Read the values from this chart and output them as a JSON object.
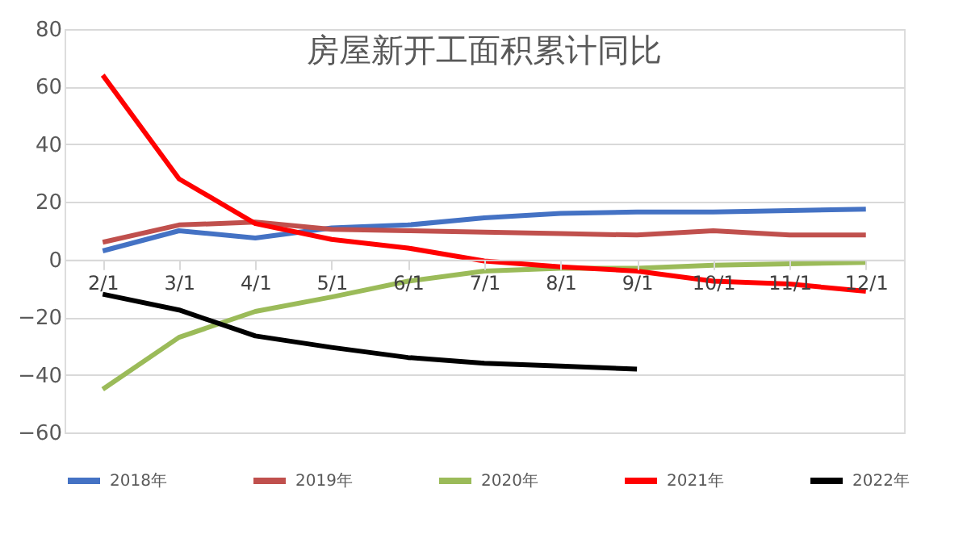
{
  "chart_data": {
    "type": "line",
    "title": "房屋新开工面积累计同比",
    "categories": [
      "2/1",
      "3/1",
      "4/1",
      "5/1",
      "6/1",
      "7/1",
      "8/1",
      "9/1",
      "10/1",
      "11/1",
      "12/1"
    ],
    "series": [
      {
        "name": "2018年",
        "color": "#4472c4",
        "values": [
          3,
          10,
          7.5,
          11,
          12,
          14.5,
          16,
          16.5,
          16.5,
          17,
          17.5
        ]
      },
      {
        "name": "2019年",
        "color": "#c0504d",
        "values": [
          6,
          12,
          13,
          10.5,
          10,
          9.5,
          9,
          8.5,
          10,
          8.5,
          8.5
        ]
      },
      {
        "name": "2020年",
        "color": "#9bbb59",
        "values": [
          -45,
          -27,
          -18,
          -13,
          -7.5,
          -4,
          -3,
          -3,
          -2,
          -1.5,
          -1
        ]
      },
      {
        "name": "2021年",
        "color": "#ff0000",
        "values": [
          64,
          28,
          12.5,
          7,
          4,
          -0.5,
          -2.5,
          -4,
          -7.5,
          -8.5,
          -11
        ]
      },
      {
        "name": "2022年",
        "color": "#000000",
        "values": [
          -12,
          -17.5,
          -26.5,
          -30.5,
          -34,
          -36,
          -37,
          -38,
          null,
          null,
          null
        ]
      }
    ],
    "ylim": [
      -60,
      80
    ],
    "yticks": [
      -60,
      -40,
      -20,
      0,
      20,
      40,
      60,
      80
    ],
    "grid": "y",
    "legend": "bottom",
    "marker": "none",
    "line_style": "solid"
  }
}
